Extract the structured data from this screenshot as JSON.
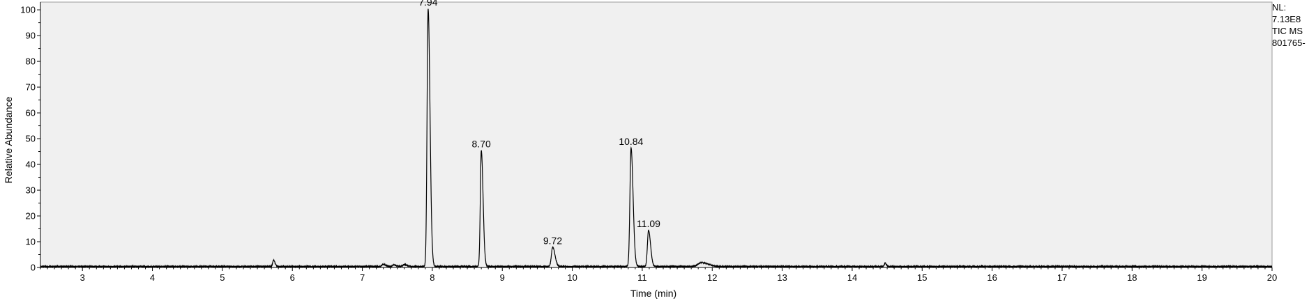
{
  "chart_data": {
    "type": "line",
    "title": "",
    "xlabel": "Time (min)",
    "ylabel": "Relative Abundance",
    "xlim": [
      2.4,
      20
    ],
    "ylim": [
      0,
      103
    ],
    "x_ticks": [
      3,
      4,
      5,
      6,
      7,
      8,
      9,
      10,
      11,
      12,
      13,
      14,
      15,
      16,
      17,
      18,
      19,
      20
    ],
    "y_ticks": [
      0,
      10,
      20,
      30,
      40,
      50,
      60,
      70,
      80,
      90,
      100
    ],
    "grid": false,
    "plot_background": "#f0f0f0",
    "line_color": "#000000",
    "baseline": 0.4,
    "peaks": [
      {
        "label": "7.94",
        "x": 7.94,
        "y": 100,
        "width": 0.015
      },
      {
        "label": "8.70",
        "x": 8.7,
        "y": 45,
        "width": 0.014
      },
      {
        "label": "9.72",
        "x": 9.72,
        "y": 7.5,
        "width": 0.018
      },
      {
        "label": "10.84",
        "x": 10.84,
        "y": 46,
        "width": 0.016
      },
      {
        "label": "11.09",
        "x": 11.09,
        "y": 14,
        "width": 0.016
      }
    ],
    "minor_peaks": [
      {
        "x": 5.73,
        "y": 2.4,
        "width": 0.012
      },
      {
        "x": 7.3,
        "y": 0.8,
        "width": 0.02
      },
      {
        "x": 7.45,
        "y": 0.6,
        "width": 0.02
      },
      {
        "x": 7.6,
        "y": 0.7,
        "width": 0.02
      },
      {
        "x": 11.85,
        "y": 1.5,
        "width": 0.05
      },
      {
        "x": 14.47,
        "y": 1.3,
        "width": 0.01
      }
    ]
  },
  "info_lines": [
    "NL:",
    "7.13E8",
    "TIC  MS",
    "801765-"
  ]
}
